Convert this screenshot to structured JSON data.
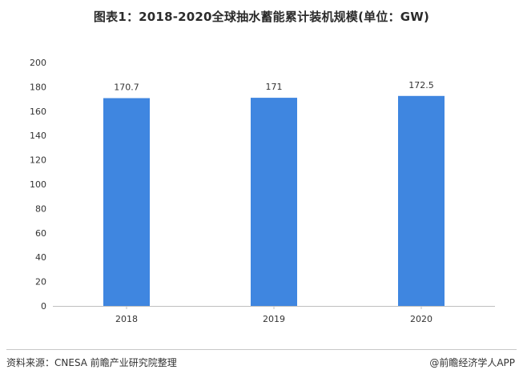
{
  "chart_data": {
    "type": "bar",
    "title": "图表1：2018-2020全球抽水蓄能累计装机规模(单位：GW)",
    "categories": [
      "2018",
      "2019",
      "2020"
    ],
    "values": [
      170.7,
      171,
      172.5
    ],
    "data_labels": [
      "170.7",
      "171",
      "172.5"
    ],
    "xlabel": "",
    "ylabel": "",
    "ylim": [
      0,
      200
    ],
    "yticks": [
      "0",
      "20",
      "40",
      "60",
      "80",
      "100",
      "120",
      "140",
      "160",
      "180",
      "200"
    ],
    "grid": false,
    "bar_color": "#3f86e0",
    "axis_color": "#bfbfbf"
  },
  "footer": {
    "source": "资料来源：CNESA 前瞻产业研究院整理",
    "brand": "@前瞻经济学人APP"
  }
}
